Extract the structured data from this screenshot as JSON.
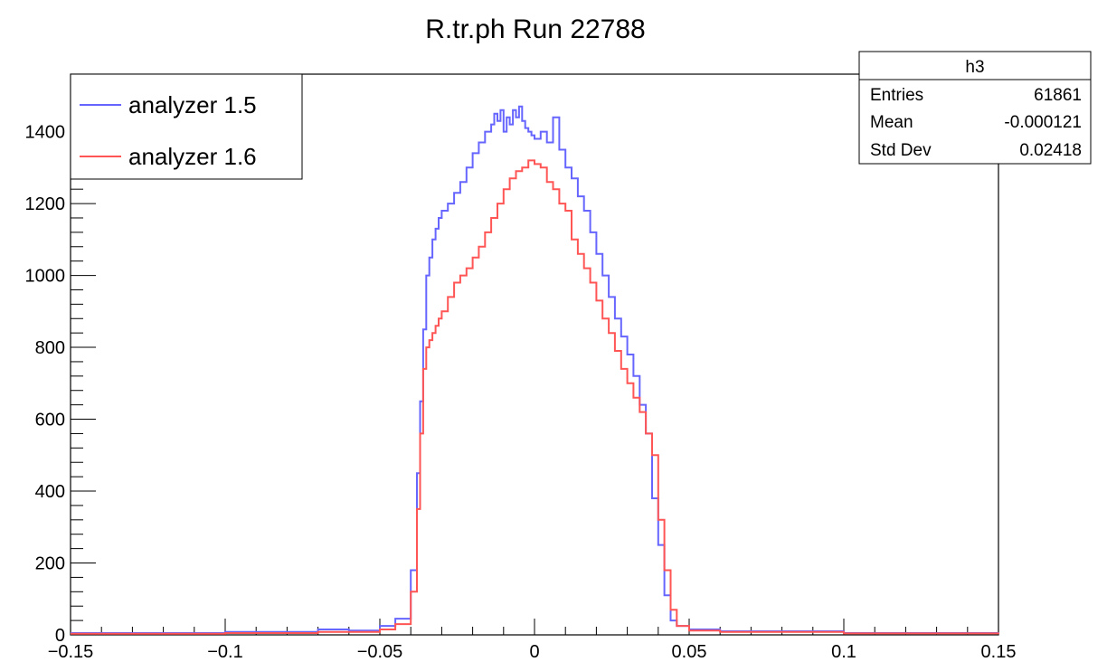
{
  "chart_data": {
    "type": "line",
    "title": "R.tr.ph Run 22788",
    "xlabel": "",
    "ylabel": "",
    "xlim": [
      -0.15,
      0.15
    ],
    "ylim": [
      0,
      1560
    ],
    "grid": false,
    "legend_position": "top-left",
    "x_ticks": [
      "-0.15",
      "-0.1",
      "-0.05",
      "0",
      "0.05",
      "0.1",
      "0.15"
    ],
    "y_ticks": [
      "0",
      "200",
      "400",
      "600",
      "800",
      "1000",
      "1200",
      "1400"
    ],
    "series": [
      {
        "name": "analyzer 1.5",
        "color": "#6666ff",
        "x": [
          -0.15,
          -0.1,
          -0.07,
          -0.06,
          -0.05,
          -0.045,
          -0.04,
          -0.038,
          -0.037,
          -0.036,
          -0.035,
          -0.034,
          -0.033,
          -0.032,
          -0.031,
          -0.03,
          -0.028,
          -0.026,
          -0.024,
          -0.022,
          -0.02,
          -0.018,
          -0.016,
          -0.014,
          -0.013,
          -0.012,
          -0.011,
          -0.01,
          -0.009,
          -0.008,
          -0.007,
          -0.006,
          -0.005,
          -0.004,
          -0.003,
          -0.002,
          -0.001,
          0,
          0.002,
          0.004,
          0.006,
          0.008,
          0.01,
          0.012,
          0.014,
          0.016,
          0.018,
          0.02,
          0.022,
          0.024,
          0.026,
          0.028,
          0.03,
          0.032,
          0.034,
          0.036,
          0.038,
          0.04,
          0.042,
          0.044,
          0.046,
          0.05,
          0.06,
          0.1,
          0.15
        ],
        "y": [
          5,
          8,
          15,
          12,
          25,
          45,
          180,
          450,
          650,
          850,
          1000,
          1050,
          1100,
          1130,
          1160,
          1180,
          1200,
          1230,
          1260,
          1300,
          1340,
          1370,
          1400,
          1420,
          1450,
          1430,
          1460,
          1400,
          1440,
          1420,
          1460,
          1440,
          1470,
          1430,
          1410,
          1400,
          1390,
          1380,
          1400,
          1370,
          1440,
          1350,
          1300,
          1270,
          1220,
          1180,
          1120,
          1060,
          1000,
          940,
          880,
          830,
          780,
          720,
          640,
          560,
          380,
          250,
          110,
          40,
          25,
          15,
          10,
          5,
          3
        ]
      },
      {
        "name": "analyzer 1.6",
        "color": "#ff5555",
        "x": [
          -0.15,
          -0.1,
          -0.07,
          -0.06,
          -0.05,
          -0.045,
          -0.04,
          -0.038,
          -0.037,
          -0.036,
          -0.035,
          -0.034,
          -0.033,
          -0.032,
          -0.031,
          -0.03,
          -0.028,
          -0.026,
          -0.024,
          -0.022,
          -0.02,
          -0.018,
          -0.016,
          -0.014,
          -0.012,
          -0.01,
          -0.008,
          -0.006,
          -0.004,
          -0.002,
          0,
          0.002,
          0.004,
          0.006,
          0.008,
          0.01,
          0.012,
          0.014,
          0.016,
          0.018,
          0.02,
          0.022,
          0.024,
          0.026,
          0.028,
          0.03,
          0.032,
          0.034,
          0.036,
          0.038,
          0.04,
          0.042,
          0.044,
          0.046,
          0.05,
          0.06,
          0.1,
          0.15
        ],
        "y": [
          3,
          5,
          8,
          8,
          15,
          30,
          120,
          350,
          560,
          740,
          800,
          820,
          840,
          860,
          880,
          900,
          940,
          980,
          1000,
          1020,
          1050,
          1080,
          1120,
          1160,
          1200,
          1240,
          1270,
          1290,
          1300,
          1320,
          1310,
          1300,
          1260,
          1240,
          1200,
          1180,
          1100,
          1060,
          1020,
          980,
          930,
          880,
          840,
          790,
          740,
          700,
          660,
          620,
          560,
          500,
          320,
          180,
          70,
          25,
          12,
          8,
          4,
          2
        ]
      }
    ],
    "stats_box": {
      "name": "h3",
      "rows": [
        {
          "label": "Entries",
          "value": "61861"
        },
        {
          "label": "Mean",
          "value": "-0.000121"
        },
        {
          "label": "Std Dev",
          "value": "0.02418"
        }
      ]
    }
  }
}
